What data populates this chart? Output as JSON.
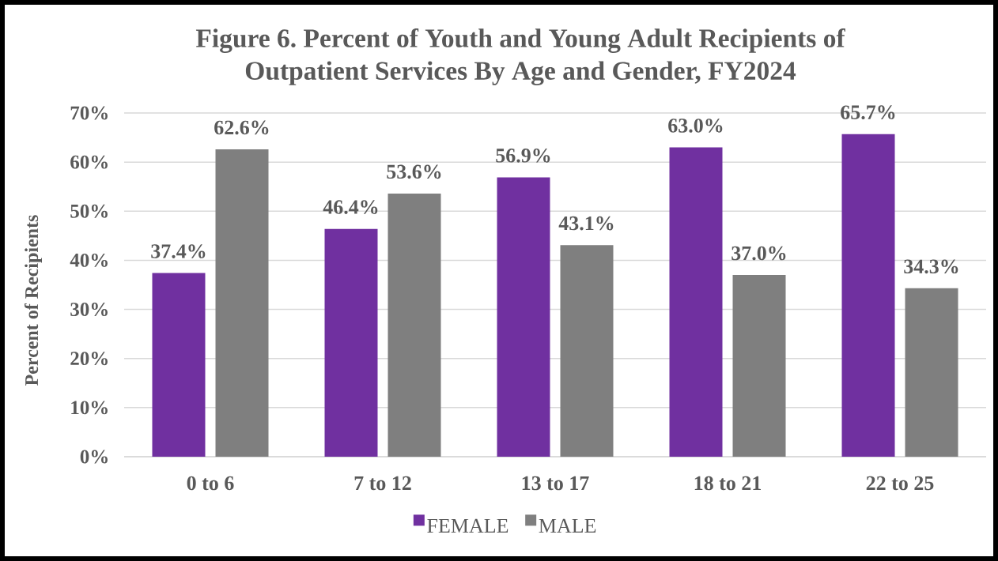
{
  "chart_data": {
    "type": "bar",
    "title": "Figure 6. Percent of Youth and Young Adult Recipients of Outpatient Services By Age and Gender, FY2024",
    "ylabel": "Percent of Recipients",
    "categories": [
      "0 to 6",
      "7 to 12",
      "13 to 17",
      "18 to 21",
      "22 to 25"
    ],
    "series": [
      {
        "name": "FEMALE",
        "color": "#7030a0",
        "values": [
          37.4,
          46.4,
          56.9,
          63.0,
          65.7
        ],
        "value_labels": [
          "37.4%",
          "46.4%",
          "56.9%",
          "63.0%",
          "65.7%"
        ]
      },
      {
        "name": "MALE",
        "color": "#7f7f7f",
        "values": [
          62.6,
          53.6,
          43.1,
          37.0,
          34.3
        ],
        "value_labels": [
          "62.6%",
          "53.6%",
          "43.1%",
          "37.0%",
          "34.3%"
        ]
      }
    ],
    "ylim": [
      0,
      70
    ],
    "yticks": [
      {
        "value": 0,
        "label": "0%"
      },
      {
        "value": 10,
        "label": "10%"
      },
      {
        "value": 20,
        "label": "20%"
      },
      {
        "value": 30,
        "label": "30%"
      },
      {
        "value": 40,
        "label": "40%"
      },
      {
        "value": 50,
        "label": "50%"
      },
      {
        "value": 60,
        "label": "60%"
      },
      {
        "value": 70,
        "label": "70%"
      }
    ],
    "grid": "y",
    "legend": "bottom"
  }
}
